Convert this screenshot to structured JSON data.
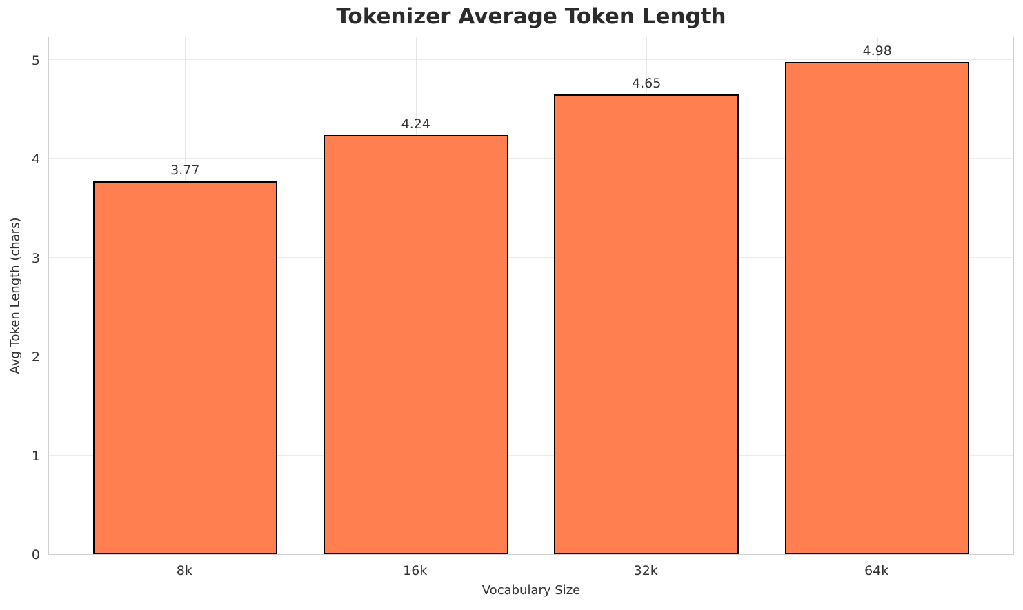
{
  "chart_data": {
    "type": "bar",
    "title": "Tokenizer Average Token Length",
    "xlabel": "Vocabulary Size",
    "ylabel": "Avg Token Length (chars)",
    "categories": [
      "8k",
      "16k",
      "32k",
      "64k"
    ],
    "values": [
      3.77,
      4.24,
      4.65,
      4.98
    ],
    "value_labels": [
      "3.77",
      "4.24",
      "4.65",
      "4.98"
    ],
    "yticks": [
      0,
      1,
      2,
      3,
      4,
      5
    ],
    "ytick_labels": [
      "0",
      "1",
      "2",
      "3",
      "4",
      "5"
    ],
    "ylim": [
      0,
      5.23
    ],
    "grid": true,
    "legend": null,
    "colors": {
      "bar_fill": "#FF7F50",
      "bar_edge": "#000000",
      "grid_h": "#ebebeb",
      "grid_v": "#e6e6e6",
      "spine": "#d0d0d0",
      "text": "#333333",
      "title_text": "#2b2b2b",
      "background": "#ffffff"
    }
  }
}
